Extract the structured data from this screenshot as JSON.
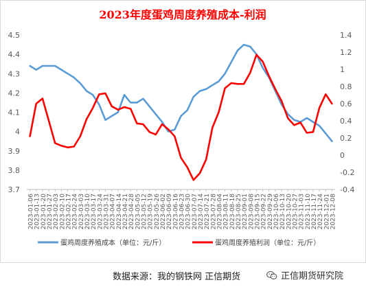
{
  "chart_data": {
    "type": "line",
    "title": "2023年度蛋鸡周度养殖成本-利润",
    "x": [
      "2023-01-06",
      "2023-01-13",
      "2023-01-20",
      "2023-01-27",
      "2023-02-03",
      "2023-02-10",
      "2023-02-17",
      "2023-02-24",
      "2023-03-03",
      "2023-03-10",
      "2023-03-17",
      "2023-03-24",
      "2023-03-31",
      "2023-04-07",
      "2023-04-14",
      "2023-04-21",
      "2023-04-28",
      "2023-05-05",
      "2023-05-12",
      "2023-05-19",
      "2023-05-26",
      "2023-06-02",
      "2023-06-09",
      "2023-06-16",
      "2023-06-23",
      "2023-06-30",
      "2023-07-07",
      "2023-07-14",
      "2023-07-21",
      "2023-07-28",
      "2023-08-04",
      "2023-08-11",
      "2023-08-18",
      "2023-08-25",
      "2023-09-01",
      "2023-09-08",
      "2023-09-15",
      "2023-09-22",
      "2023-09-29",
      "2023-10-06",
      "2023-10-13",
      "2023-10-20",
      "2023-10-27",
      "2023-11-03",
      "2023-11-10",
      "2023-11-17",
      "2023-11-24",
      "2023-12-01",
      "2023-12-08"
    ],
    "series": [
      {
        "name": "蛋鸡周度养殖成本（单位：元/斤）",
        "axis": "left",
        "color": "#5b9bd5",
        "values": [
          4.34,
          4.32,
          4.34,
          4.34,
          4.34,
          4.32,
          4.3,
          4.28,
          4.25,
          4.21,
          4.19,
          4.14,
          4.06,
          4.08,
          4.1,
          4.19,
          4.15,
          4.15,
          4.17,
          4.13,
          4.09,
          4.05,
          4.0,
          4.01,
          4.08,
          4.11,
          4.18,
          4.21,
          4.22,
          4.24,
          4.26,
          4.3,
          4.36,
          4.42,
          4.45,
          4.44,
          4.4,
          4.33,
          4.28,
          4.21,
          4.14,
          4.09,
          4.06,
          4.05,
          4.07,
          4.05,
          4.03,
          3.99,
          3.95
        ]
      },
      {
        "name": "蛋鸡周度养殖利润（单位：元/斤）",
        "axis": "right",
        "color": "#ff0000",
        "values": [
          0.22,
          0.6,
          0.66,
          0.4,
          0.14,
          0.11,
          0.09,
          0.1,
          0.22,
          0.42,
          0.55,
          0.71,
          0.72,
          0.57,
          0.53,
          0.56,
          0.54,
          0.37,
          0.36,
          0.27,
          0.24,
          0.36,
          0.3,
          0.22,
          -0.03,
          -0.14,
          -0.29,
          -0.21,
          -0.05,
          0.32,
          0.5,
          0.78,
          0.84,
          0.83,
          0.83,
          0.96,
          1.17,
          1.09,
          0.92,
          0.77,
          0.63,
          0.43,
          0.35,
          0.38,
          0.26,
          0.27,
          0.55,
          0.71,
          0.6
        ]
      }
    ],
    "y_left": {
      "min": 3.7,
      "max": 4.5,
      "step": 0.1,
      "ticks": [
        "3.7",
        "3.8",
        "3.9",
        "4",
        "4.1",
        "4.2",
        "4.3",
        "4.4",
        "4.5"
      ]
    },
    "y_right": {
      "min": -0.4,
      "max": 1.4,
      "step": 0.2,
      "ticks": [
        "-0.4",
        "-0.2",
        "0",
        "0.2",
        "0.4",
        "0.6",
        "0.8",
        "1",
        "1.2",
        "1.4"
      ]
    },
    "grid": false,
    "legend_position": "bottom"
  },
  "footer": {
    "source": "数据来源：我的钢铁网  正信期货",
    "brand": "正信期货研究院"
  },
  "colors": {
    "title": "#ff0000",
    "axis": "#bfbfbf",
    "tick_text": "#595959"
  },
  "icons": {
    "brand": "wechat-icon"
  }
}
